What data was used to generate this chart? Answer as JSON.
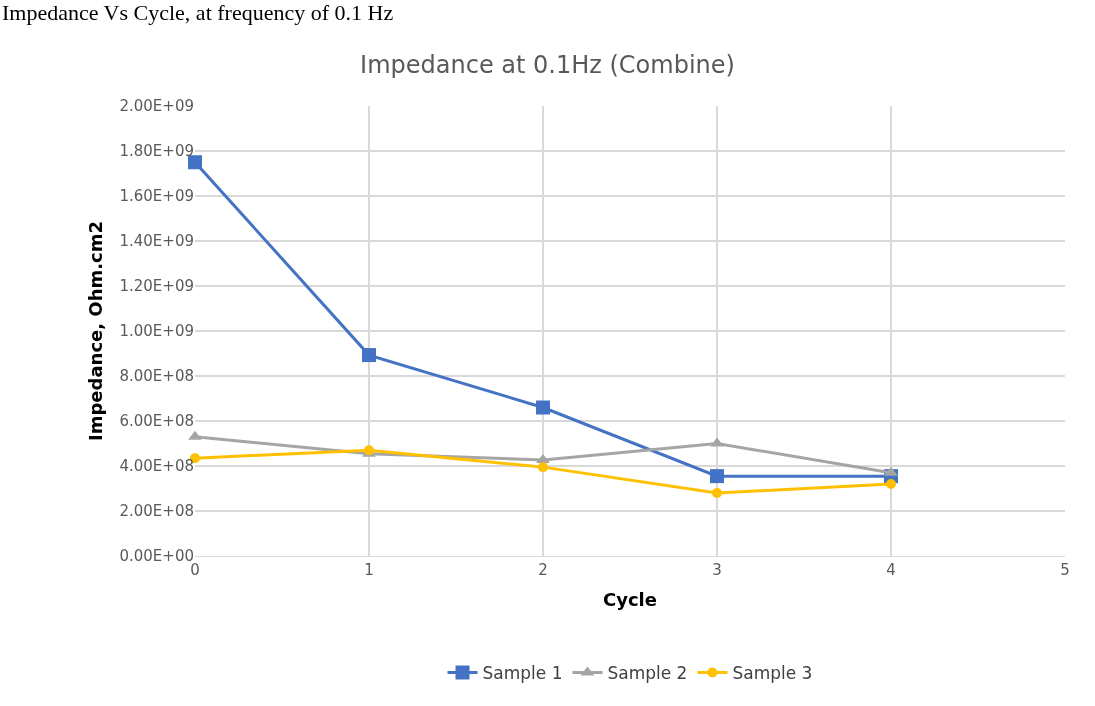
{
  "chart_data": {
    "type": "line",
    "title": "Impedance at 0.1Hz (Combine)",
    "xlabel": "Cycle",
    "ylabel": "Impedance, Ohm.cm2",
    "annotations": [
      "Impedance Vs Cycle, at frequency of 0.1 Hz"
    ],
    "x": [
      0,
      1,
      2,
      3,
      4
    ],
    "series": [
      {
        "name": "Sample 1",
        "color": "#4472c4",
        "marker": "square",
        "values": [
          1750000000,
          893000000,
          660000000,
          355000000,
          355000000
        ]
      },
      {
        "name": "Sample 2",
        "color": "#a5a5a5",
        "marker": "triangle",
        "values": [
          530000000,
          455000000,
          427000000,
          500000000,
          370000000
        ]
      },
      {
        "name": "Sample 3",
        "color": "#ffc000",
        "marker": "circle",
        "values": [
          435000000,
          470000000,
          395000000,
          280000000,
          320000000
        ]
      }
    ],
    "xlim": [
      0,
      5
    ],
    "xticks": [
      0,
      1,
      2,
      3,
      4,
      5
    ],
    "ylim": [
      0,
      2000000000
    ],
    "yticks": [
      {
        "value": 0,
        "label": "0.00E+00"
      },
      {
        "value": 200000000,
        "label": "2.00E+08"
      },
      {
        "value": 400000000,
        "label": "4.00E+08"
      },
      {
        "value": 600000000,
        "label": "6.00E+08"
      },
      {
        "value": 800000000,
        "label": "8.00E+08"
      },
      {
        "value": 1000000000,
        "label": "1.00E+09"
      },
      {
        "value": 1200000000,
        "label": "1.20E+09"
      },
      {
        "value": 1400000000,
        "label": "1.40E+09"
      },
      {
        "value": 1600000000,
        "label": "1.60E+09"
      },
      {
        "value": 1800000000,
        "label": "1.80E+09"
      },
      {
        "value": 2000000000,
        "label": "2.00E+09"
      }
    ],
    "grid": true,
    "legend": "bottom",
    "line_style": "solid"
  }
}
